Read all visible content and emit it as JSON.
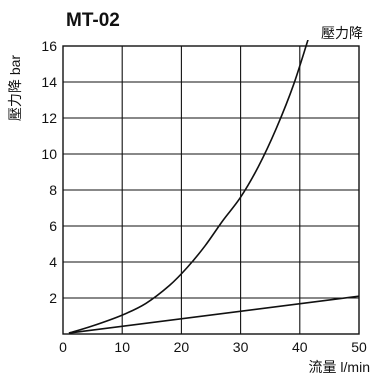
{
  "chart_data": {
    "type": "line",
    "title": "MT-02",
    "xlabel": "流量 l/min",
    "ylabel": "壓力降 bar",
    "xlim": [
      0,
      50
    ],
    "ylim": [
      0,
      16
    ],
    "x_ticks": [
      0,
      10,
      20,
      30,
      40,
      50
    ],
    "y_ticks": [
      2,
      4,
      6,
      8,
      10,
      12,
      14,
      16
    ],
    "grid": true,
    "series": [
      {
        "name": "壓力降",
        "color": "#111111",
        "x": [
          1,
          5,
          10,
          14,
          18,
          21,
          24,
          27,
          30,
          33,
          36,
          39,
          42
        ],
        "y": [
          0.05,
          0.45,
          1.05,
          1.7,
          2.7,
          3.7,
          4.9,
          6.3,
          7.6,
          9.3,
          11.4,
          13.9,
          17.0
        ]
      },
      {
        "name": "",
        "color": "#111111",
        "x": [
          1,
          50
        ],
        "y": [
          0.05,
          2.1
        ]
      }
    ]
  }
}
